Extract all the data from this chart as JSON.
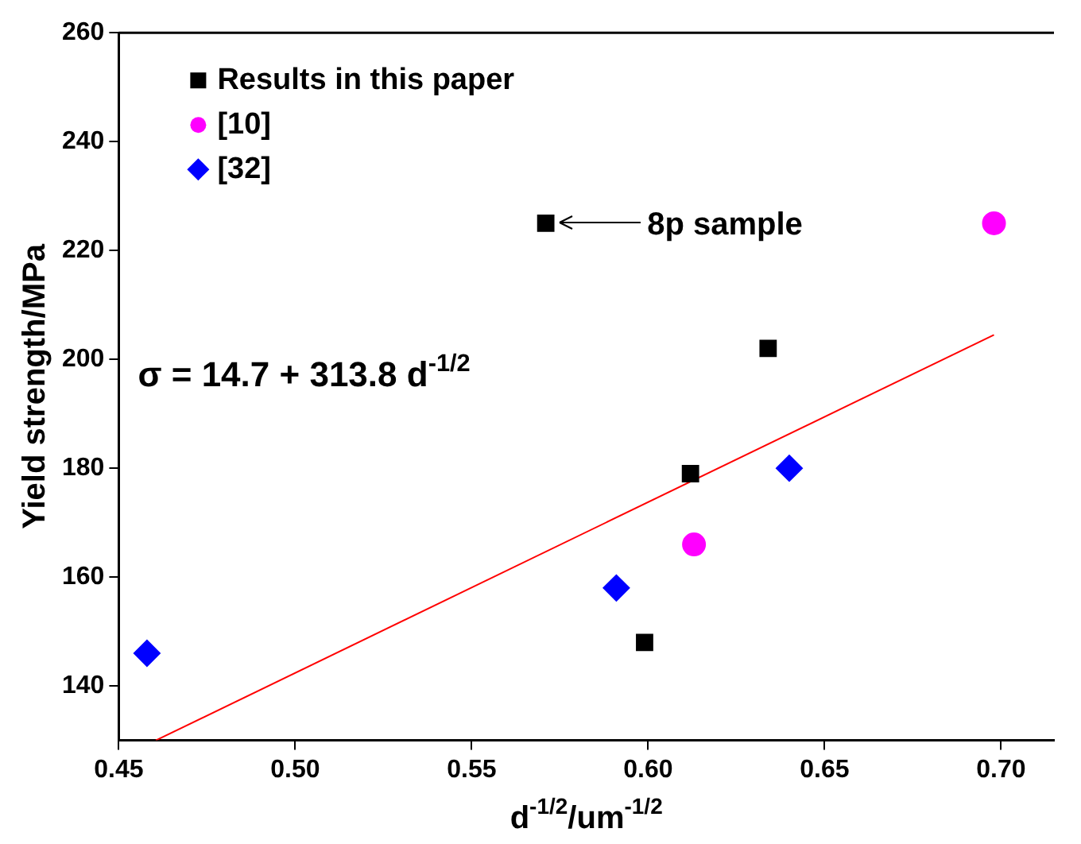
{
  "chart_data": {
    "type": "scatter",
    "xlabel": "d$^{-1/2}$/um$^{-1/2}$",
    "ylabel": "Yield strength/MPa",
    "xlim": [
      0.45,
      0.715
    ],
    "xticks": [
      0.45,
      {
        "value": 0.5,
        "label": "0.50"
      },
      0.55,
      {
        "value": 0.6,
        "label": "0.60"
      },
      0.65,
      {
        "value": 0.7,
        "label": "0.70"
      }
    ],
    "ylim": [
      130,
      260
    ],
    "yticks": [
      140,
      160,
      180,
      200,
      220,
      240,
      260
    ],
    "grid": false,
    "legend": "top left",
    "series": [
      {
        "name": "Results in this paper",
        "color": "#000000",
        "marker": "square",
        "x": [
          0.571,
          0.634,
          0.612,
          0.599
        ],
        "values": [
          225,
          202,
          179,
          148
        ]
      },
      {
        "name": "[10]",
        "color": "#ff00ff",
        "marker": "circle",
        "x": [
          0.698,
          0.613
        ],
        "values": [
          225,
          166
        ]
      },
      {
        "name": "[32]",
        "color": "#0000ff",
        "marker": "diamond",
        "x": [
          0.458,
          0.591,
          0.64
        ],
        "values": [
          146,
          158,
          180
        ]
      },
      {
        "type": "line",
        "color": "#ff0000",
        "marker": "none",
        "x": [
          0.4605,
          0.698
        ],
        "values": [
          130,
          204.5
        ]
      }
    ],
    "annotations": [
      "8p sample",
      "σ = 14.7 + 313.8 d$^{-1/2}$"
    ]
  }
}
